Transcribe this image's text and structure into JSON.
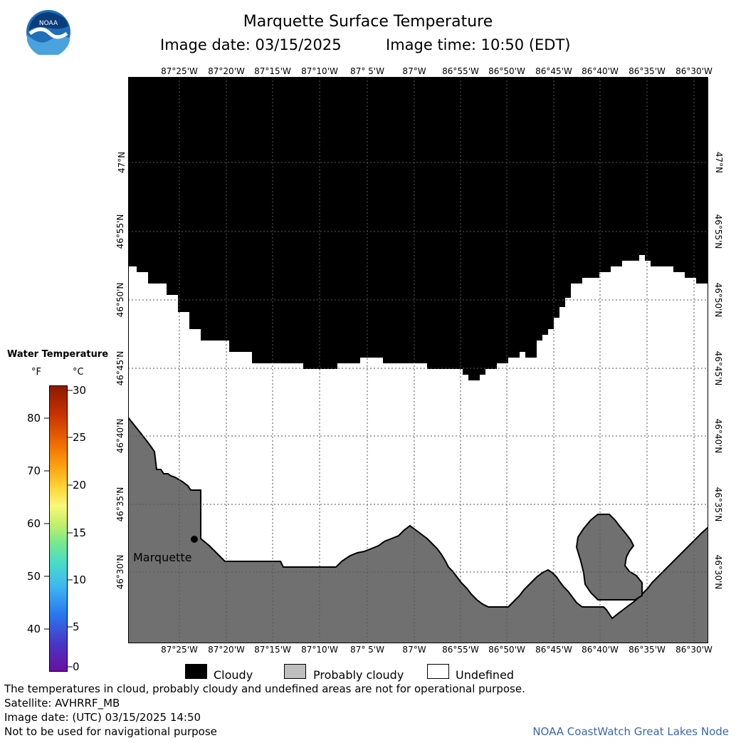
{
  "header": {
    "title": "Marquette Surface Temperature",
    "image_date": "Image date: 03/15/2025",
    "image_time": "Image time: 10:50 (EDT)"
  },
  "logo": {
    "text": "NOAA"
  },
  "longitudes": [
    "87°25'W",
    "87°20'W",
    "87°15'W",
    "87°10'W",
    "87° 5'W",
    "87°W",
    "86°55'W",
    "86°50'W",
    "86°45'W",
    "86°40'W",
    "86°35'W",
    "86°30'W"
  ],
  "latitudes": [
    "47°N",
    "46°55'N",
    "46°50'N",
    "46°45'N",
    "46°40'N",
    "46°35'N",
    "46°30'N"
  ],
  "place": {
    "name": "Marquette"
  },
  "temperature_legend": {
    "title": "Water Temperature",
    "unit_f": "°F",
    "unit_c": "°C",
    "fahrenheit_ticks": [
      "80",
      "70",
      "60",
      "50",
      "40"
    ],
    "celsius_ticks": [
      "30",
      "25",
      "20",
      "15",
      "10",
      "5",
      "0"
    ]
  },
  "category_legend": {
    "cloudy": "Cloudy",
    "probably_cloudy": "Probably cloudy",
    "undefined": "Undefined"
  },
  "colors": {
    "cloud": "#000000",
    "land": "#707070",
    "probably_cloudy_swatch": "#bebebe",
    "undefined": "#ffffff",
    "credit": "#3a66b0"
  },
  "footer": {
    "note": "The temperatures in cloud, probably cloudy and undefined areas are not for operational purpose.",
    "satellite": "Satellite: AVHRRF_MB",
    "utc_date": "Image date: (UTC) 03/15/2025  14:50",
    "disclaimer": "Not to be used for navigational purpose",
    "credit": "NOAA CoastWatch Great Lakes Node"
  }
}
